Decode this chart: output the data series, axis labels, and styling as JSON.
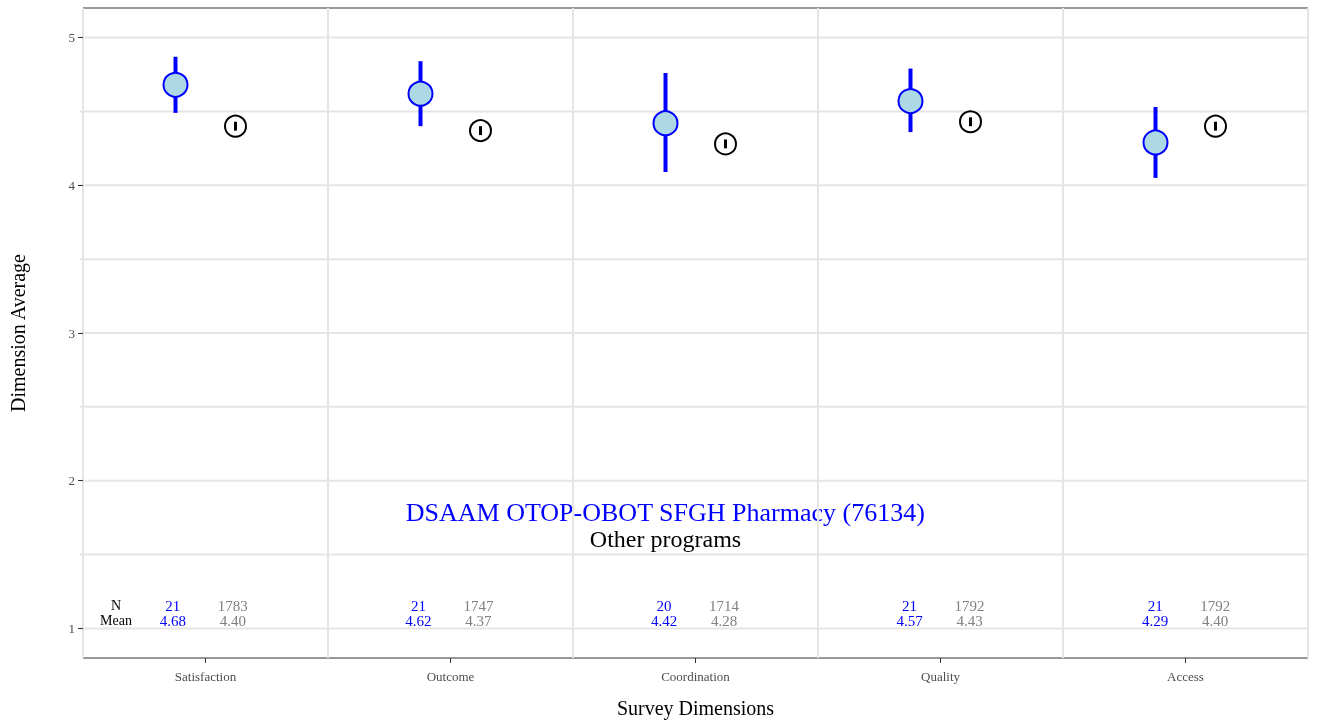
{
  "chart_data": {
    "type": "scatter",
    "xlabel": "Survey Dimensions",
    "ylabel": "Dimension Average",
    "categories": [
      "Satisfaction",
      "Outcome",
      "Coordination",
      "Quality",
      "Access"
    ],
    "series": [
      {
        "name": "DSAAM OTOP-OBOT SFGH Pharmacy (76134)",
        "color": "#0000ff",
        "values": [
          4.68,
          4.62,
          4.42,
          4.57,
          4.29
        ],
        "errors": [
          [
            4.49,
            4.87
          ],
          [
            4.4,
            4.84
          ],
          [
            4.09,
            4.76
          ],
          [
            4.36,
            4.79
          ],
          [
            4.05,
            4.53
          ]
        ]
      },
      {
        "name": "Other programs",
        "color": "#000000",
        "values": [
          4.4,
          4.37,
          4.28,
          4.43,
          4.4
        ],
        "errors": [
          [
            4.37,
            4.43
          ],
          [
            4.34,
            4.4
          ],
          [
            4.25,
            4.31
          ],
          [
            4.4,
            4.46
          ],
          [
            4.37,
            4.43
          ]
        ]
      }
    ],
    "annotations": [
      "N",
      "Mean",
      "21",
      "1783",
      "4.68",
      "4.40",
      "21",
      "1747",
      "4.62",
      "4.37",
      "20",
      "1714",
      "4.42",
      "4.28",
      "21",
      "1792",
      "4.57",
      "4.43",
      "21",
      "1792",
      "4.29",
      "4.40"
    ],
    "ylim": [
      0.8,
      5.2
    ],
    "yticks": [
      1,
      {
        "value": 1.5,
        "label": null
      },
      2,
      {
        "value": 2.5,
        "label": null
      },
      3,
      {
        "value": 3.5,
        "label": null
      },
      4,
      {
        "value": 4.5,
        "label": null
      },
      5
    ],
    "grid": true,
    "legend": false,
    "marker": "circle"
  }
}
